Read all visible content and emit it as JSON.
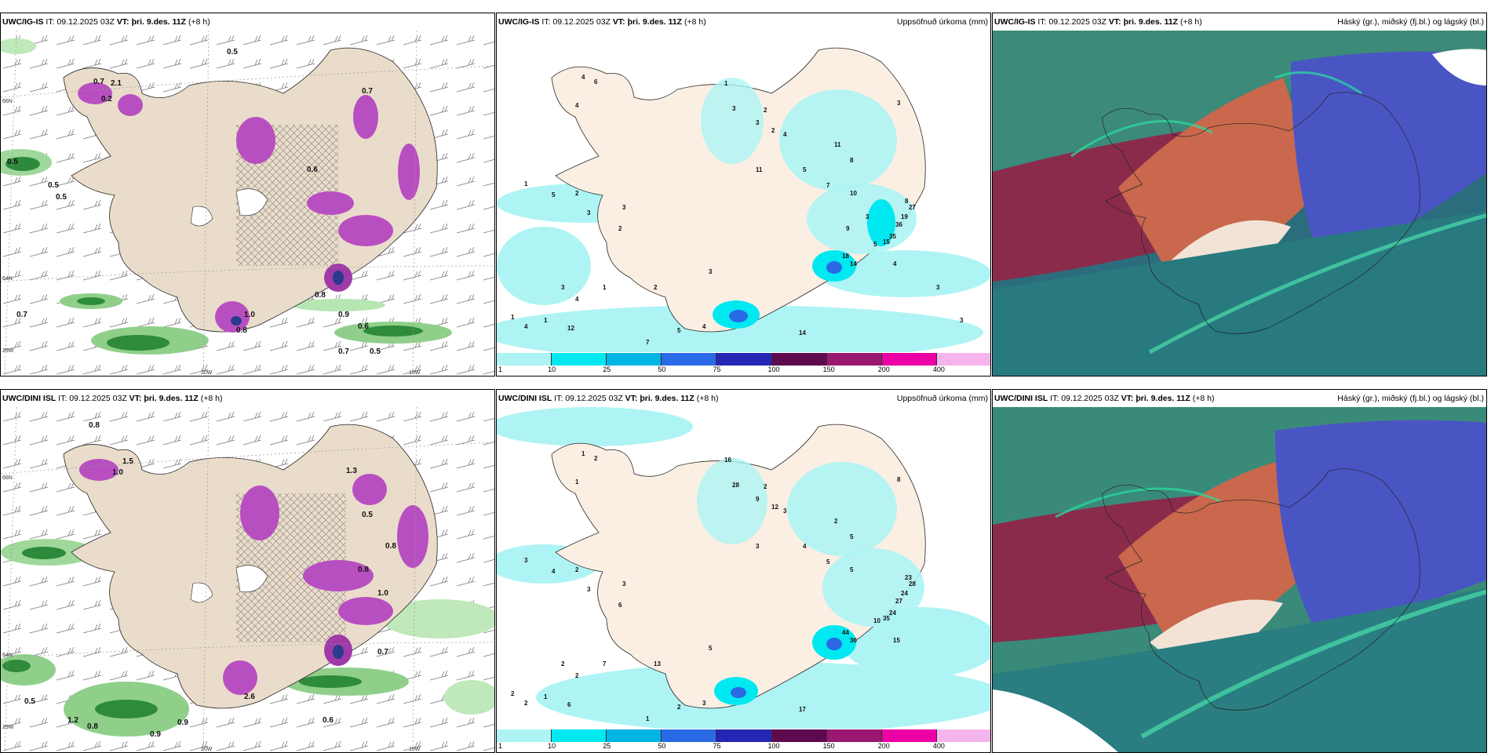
{
  "panels": [
    {
      "model": "UWC/IG-IS",
      "it_label": "IT:",
      "it": "09.12.2025 03Z",
      "vt_label": "VT:",
      "vt": "þri. 9.des. 11Z",
      "lead": "(+8 h)",
      "right_title": ""
    },
    {
      "model": "UWC/IG-IS",
      "it_label": "IT:",
      "it": "09.12.2025 03Z",
      "vt_label": "VT:",
      "vt": "þri. 9.des. 11Z",
      "lead": "(+8 h)",
      "right_title": "Uppsöfnuð úrkoma (mm)"
    },
    {
      "model": "UWC/IG-IS",
      "it_label": "IT:",
      "it": "09.12.2025 03Z",
      "vt_label": "VT:",
      "vt": "þri. 9.des. 11Z",
      "lead": "(+8 h)",
      "right_title": "Háský (gr.), miðský (fj.bl.) og lágský (bl.)"
    },
    {
      "model": "UWC/DINI ISL",
      "it_label": "IT:",
      "it": "09.12.2025 03Z",
      "vt_label": "VT:",
      "vt": "þri. 9.des. 11Z",
      "lead": "(+8 h)",
      "right_title": ""
    },
    {
      "model": "UWC/DINI ISL",
      "it_label": "IT:",
      "it": "09.12.2025 03Z",
      "vt_label": "VT:",
      "vt": "þri. 9.des. 11Z",
      "lead": "(+8 h)",
      "right_title": "Uppsöfnuð úrkoma (mm)"
    },
    {
      "model": "UWC/DINI ISL",
      "it_label": "IT:",
      "it": "09.12.2025 03Z",
      "vt_label": "VT:",
      "vt": "þri. 9.des. 11Z",
      "lead": "(+8 h)",
      "right_title": "Háský (gr.), miðský (fj.bl.) og lágský (bl.)"
    }
  ],
  "grid_labels": {
    "lat66": "66N",
    "lat64": "64N",
    "lon25": "25W",
    "lon20": "20W",
    "lon15": "15W"
  },
  "precip_scale": {
    "labels": [
      "1",
      "10",
      "25",
      "50",
      "75",
      "100",
      "150",
      "200",
      "400"
    ],
    "colors": [
      "#aef4f4",
      "#00e8f0",
      "#00b4e4",
      "#2a6ae6",
      "#2626b4",
      "#5e0a4e",
      "#9a1870",
      "#ea00a4",
      "#f6b4ec"
    ]
  },
  "map_colors": {
    "land": "#eadccb",
    "ocean": "#ffffff",
    "precip_land": "#fbefe4",
    "cloud_high": "#1f8d7c",
    "cloud_mid": "#9a2c4a",
    "cloud_low": "#4b55c8",
    "cloud_orange": "#cf6d48"
  },
  "snow_labels_top": [
    "0.7",
    "2.1",
    "0.2",
    "0.5",
    "0.5",
    "0.5",
    "0.5",
    "0.7",
    "0.6",
    "0.9",
    "0.7",
    "0.7",
    "0.5",
    "0.6",
    "1.0",
    "0.8",
    "0.8"
  ],
  "snow_labels_bottom": [
    "0.8",
    "1.5",
    "1.0",
    "1.3",
    "0.5",
    "0.8",
    "1.0",
    "0.8",
    "0.9",
    "0.9",
    "0.7",
    "2.6",
    "0.5",
    "0.8",
    "1.2",
    "0.6"
  ],
  "precip_values_top": [
    "4",
    "6",
    "4",
    "1",
    "5",
    "2",
    "3",
    "3",
    "2",
    "1",
    "2",
    "3",
    "7",
    "4",
    "5",
    "11",
    "14",
    "1",
    "3",
    "8",
    "27",
    "19",
    "36",
    "35",
    "15",
    "14",
    "18",
    "4",
    "5",
    "3",
    "11",
    "8",
    "5",
    "7",
    "10",
    "2",
    "3",
    "2",
    "4",
    "1",
    "4",
    "1",
    "12",
    "3",
    "4",
    "9",
    "3",
    "3",
    "3"
  ],
  "precip_values_bottom": [
    "1",
    "2",
    "1",
    "3",
    "4",
    "2",
    "3",
    "3",
    "6",
    "7",
    "13",
    "5",
    "1",
    "3",
    "2",
    "3",
    "17",
    "16",
    "28",
    "23",
    "28",
    "24",
    "27",
    "24",
    "35",
    "36",
    "44",
    "15",
    "10",
    "8",
    "2",
    "5",
    "4",
    "5",
    "5",
    "2",
    "9",
    "12",
    "3",
    "2",
    "2",
    "1",
    "6",
    "2",
    "2"
  ]
}
